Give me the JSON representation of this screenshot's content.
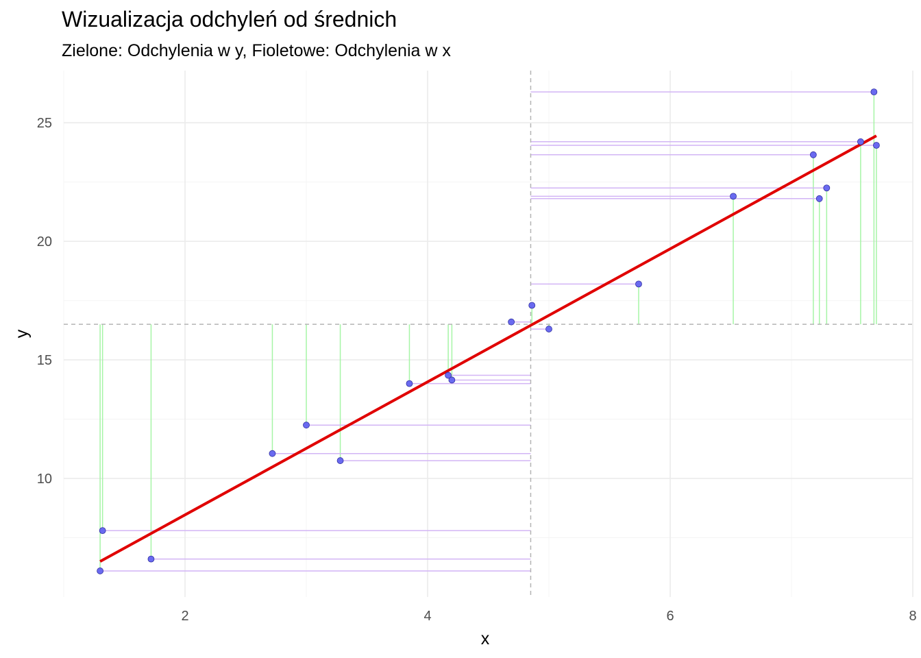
{
  "chart_data": {
    "type": "scatter",
    "title": "Wizualizacja odchyleń od średnich",
    "subtitle": "Zielone: Odchylenia w y, Fioletowe: Odchylenia w x",
    "xlabel": "x",
    "ylabel": "y",
    "xlim": [
      1.0,
      8.0
    ],
    "ylim": [
      5.0,
      27.2
    ],
    "x_ticks": [
      2,
      4,
      6,
      8
    ],
    "y_ticks": [
      10,
      15,
      20,
      25
    ],
    "grid": true,
    "mean_x": 4.85,
    "mean_y": 16.5,
    "regression_line": {
      "x": [
        1.3,
        7.7
      ],
      "y": [
        6.5,
        24.45
      ]
    },
    "points": [
      {
        "x": 1.3,
        "y": 6.1
      },
      {
        "x": 1.32,
        "y": 7.8
      },
      {
        "x": 1.72,
        "y": 6.6
      },
      {
        "x": 2.72,
        "y": 11.05
      },
      {
        "x": 3.0,
        "y": 12.25
      },
      {
        "x": 3.28,
        "y": 10.75
      },
      {
        "x": 3.85,
        "y": 14.0
      },
      {
        "x": 4.17,
        "y": 14.35
      },
      {
        "x": 4.2,
        "y": 14.15
      },
      {
        "x": 4.69,
        "y": 16.6
      },
      {
        "x": 4.86,
        "y": 17.3
      },
      {
        "x": 5.0,
        "y": 16.3
      },
      {
        "x": 5.74,
        "y": 18.2
      },
      {
        "x": 6.52,
        "y": 21.9
      },
      {
        "x": 7.18,
        "y": 23.65
      },
      {
        "x": 7.23,
        "y": 21.8
      },
      {
        "x": 7.29,
        "y": 22.25
      },
      {
        "x": 7.57,
        "y": 24.2
      },
      {
        "x": 7.68,
        "y": 26.3
      },
      {
        "x": 7.7,
        "y": 24.05
      }
    ],
    "colors": {
      "point_fill": "#6a6af0",
      "point_stroke": "#3030a0",
      "regression": "#e00000",
      "y_deviation": "#a6f5a6",
      "x_deviation": "#d2b4f5",
      "mean_line": "#b3b3b3",
      "grid_major": "#ebebeb",
      "grid_minor": "#f4f4f4"
    }
  }
}
